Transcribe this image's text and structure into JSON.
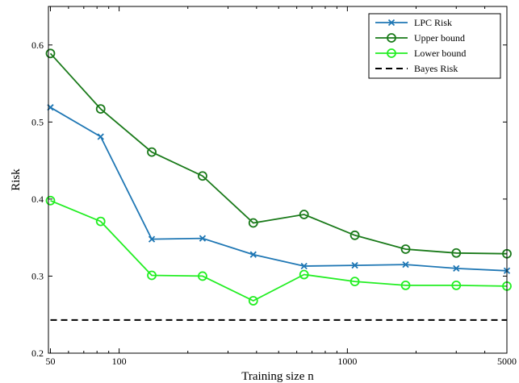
{
  "chart_data": {
    "type": "line",
    "title": "",
    "xlabel": "Training size n",
    "ylabel": "Risk",
    "xscale": "log",
    "xlim": [
      49,
      5000
    ],
    "ylim": [
      0.2,
      0.65
    ],
    "xticks": [
      50,
      100,
      1000,
      5000
    ],
    "xtick_labels": [
      "50",
      "100",
      "1000",
      "5000"
    ],
    "yticks": [
      0.2,
      0.3,
      0.4,
      0.5,
      0.6
    ],
    "ytick_labels": [
      "0.2",
      "0.3",
      "0.4",
      "0.5",
      "0.6"
    ],
    "grid": false,
    "legend_position": "top-right",
    "x": [
      50,
      83,
      139,
      232,
      387,
      646,
      1078,
      1800,
      3000,
      5000
    ],
    "series": [
      {
        "name": "LPC Risk",
        "color": "#1f77b4",
        "marker": "x",
        "values": [
          0.519,
          0.481,
          0.348,
          0.349,
          0.328,
          0.313,
          0.314,
          0.315,
          0.31,
          0.307
        ]
      },
      {
        "name": "Upper bound",
        "color": "#1a7a1a",
        "marker": "circle",
        "values": [
          0.589,
          0.517,
          0.461,
          0.43,
          0.369,
          0.38,
          0.353,
          0.335,
          0.33,
          0.329
        ]
      },
      {
        "name": "Lower bound",
        "color": "#22ee22",
        "marker": "circle",
        "values": [
          0.398,
          0.371,
          0.301,
          0.3,
          0.268,
          0.302,
          0.293,
          0.288,
          0.288,
          0.287
        ]
      },
      {
        "name": "Bayes Risk",
        "color": "#000000",
        "marker": "none",
        "dash": true,
        "values": [
          0.243,
          0.243,
          0.243,
          0.243,
          0.243,
          0.243,
          0.243,
          0.243,
          0.243,
          0.243
        ]
      }
    ]
  }
}
